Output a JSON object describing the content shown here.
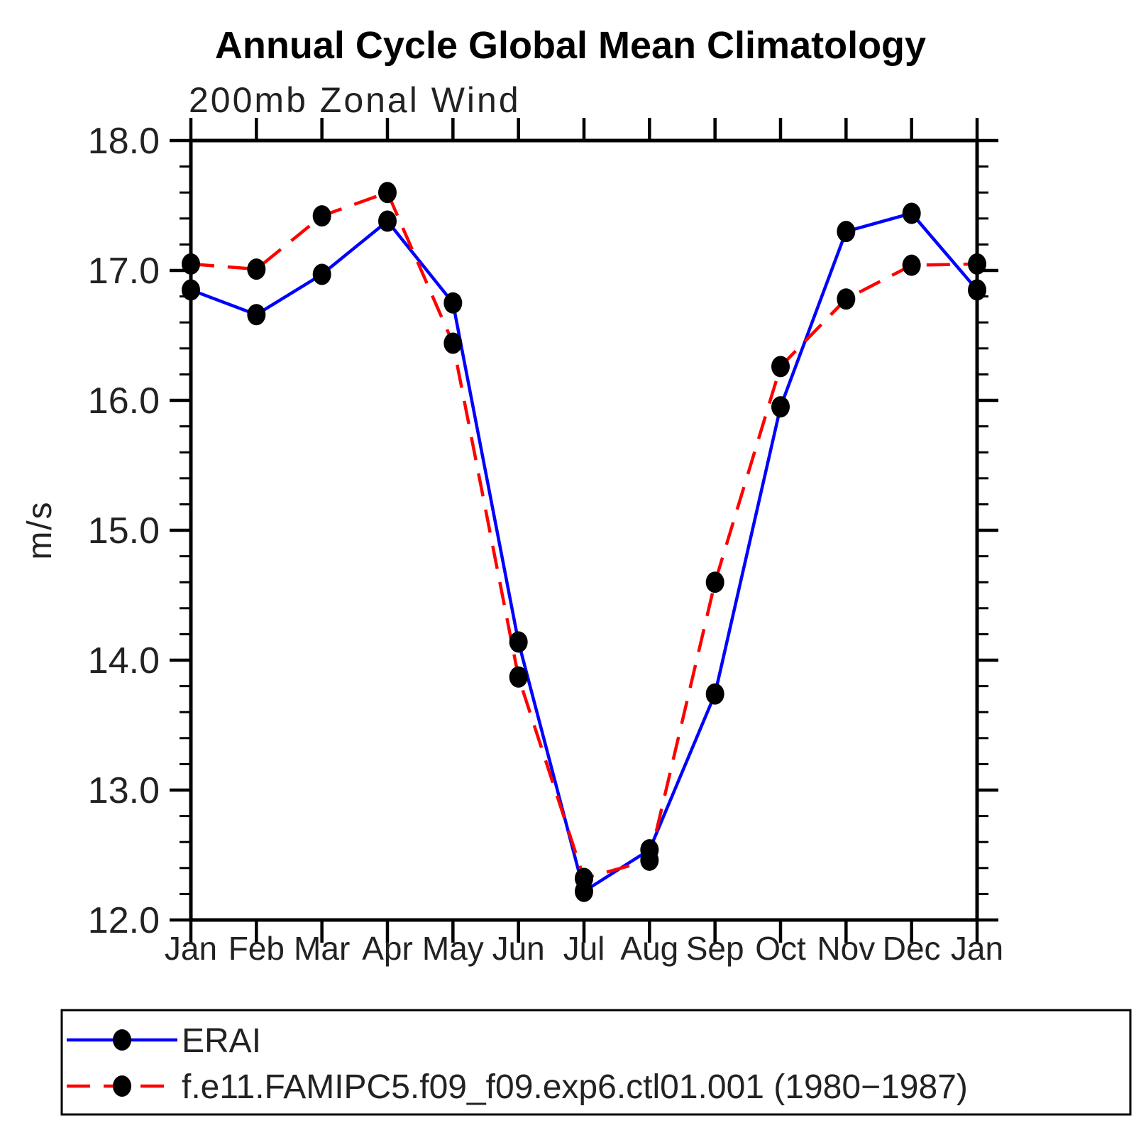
{
  "page": {
    "background_color": "#ffffff"
  },
  "chart_data": {
    "type": "line",
    "title": "Annual Cycle Global Mean Climatology",
    "subtitle": "200mb Zonal Wind",
    "ylabel": "m/s",
    "categories": [
      "Jan",
      "Feb",
      "Mar",
      "Apr",
      "May",
      "Jun",
      "Jul",
      "Aug",
      "Sep",
      "Oct",
      "Nov",
      "Dec",
      "Jan"
    ],
    "ylim": [
      12.0,
      18.0
    ],
    "y_major_tick_values": [
      18.0,
      17.0,
      16.0,
      15.0,
      14.0,
      13.0,
      12.0
    ],
    "y_major_tick_labels": [
      "18.0",
      "17.0",
      "16.0",
      "15.0",
      "14.0",
      "13.0",
      "12.0"
    ],
    "y_minor_step": 0.2,
    "grid": false,
    "frame": "box",
    "tick_direction": "out",
    "legend_position": "bottom",
    "marker_color": "#000000",
    "series": [
      {
        "name": "ERAI",
        "line_color": "#0000ff",
        "line_style": "solid",
        "marker": "filled-circle",
        "values": [
          16.85,
          16.66,
          16.97,
          17.38,
          16.75,
          14.14,
          12.22,
          12.54,
          13.74,
          15.95,
          17.3,
          17.44,
          16.85
        ]
      },
      {
        "name": "f.e11.FAMIPC5.f09_f09.exp6.ctl01.001 (1980−1987)",
        "line_color": "#ff0000",
        "line_style": "dashed",
        "marker": "filled-circle",
        "values": [
          17.05,
          17.01,
          17.42,
          17.6,
          16.44,
          13.87,
          12.32,
          12.46,
          14.6,
          16.26,
          16.78,
          17.04,
          17.05
        ]
      }
    ]
  }
}
